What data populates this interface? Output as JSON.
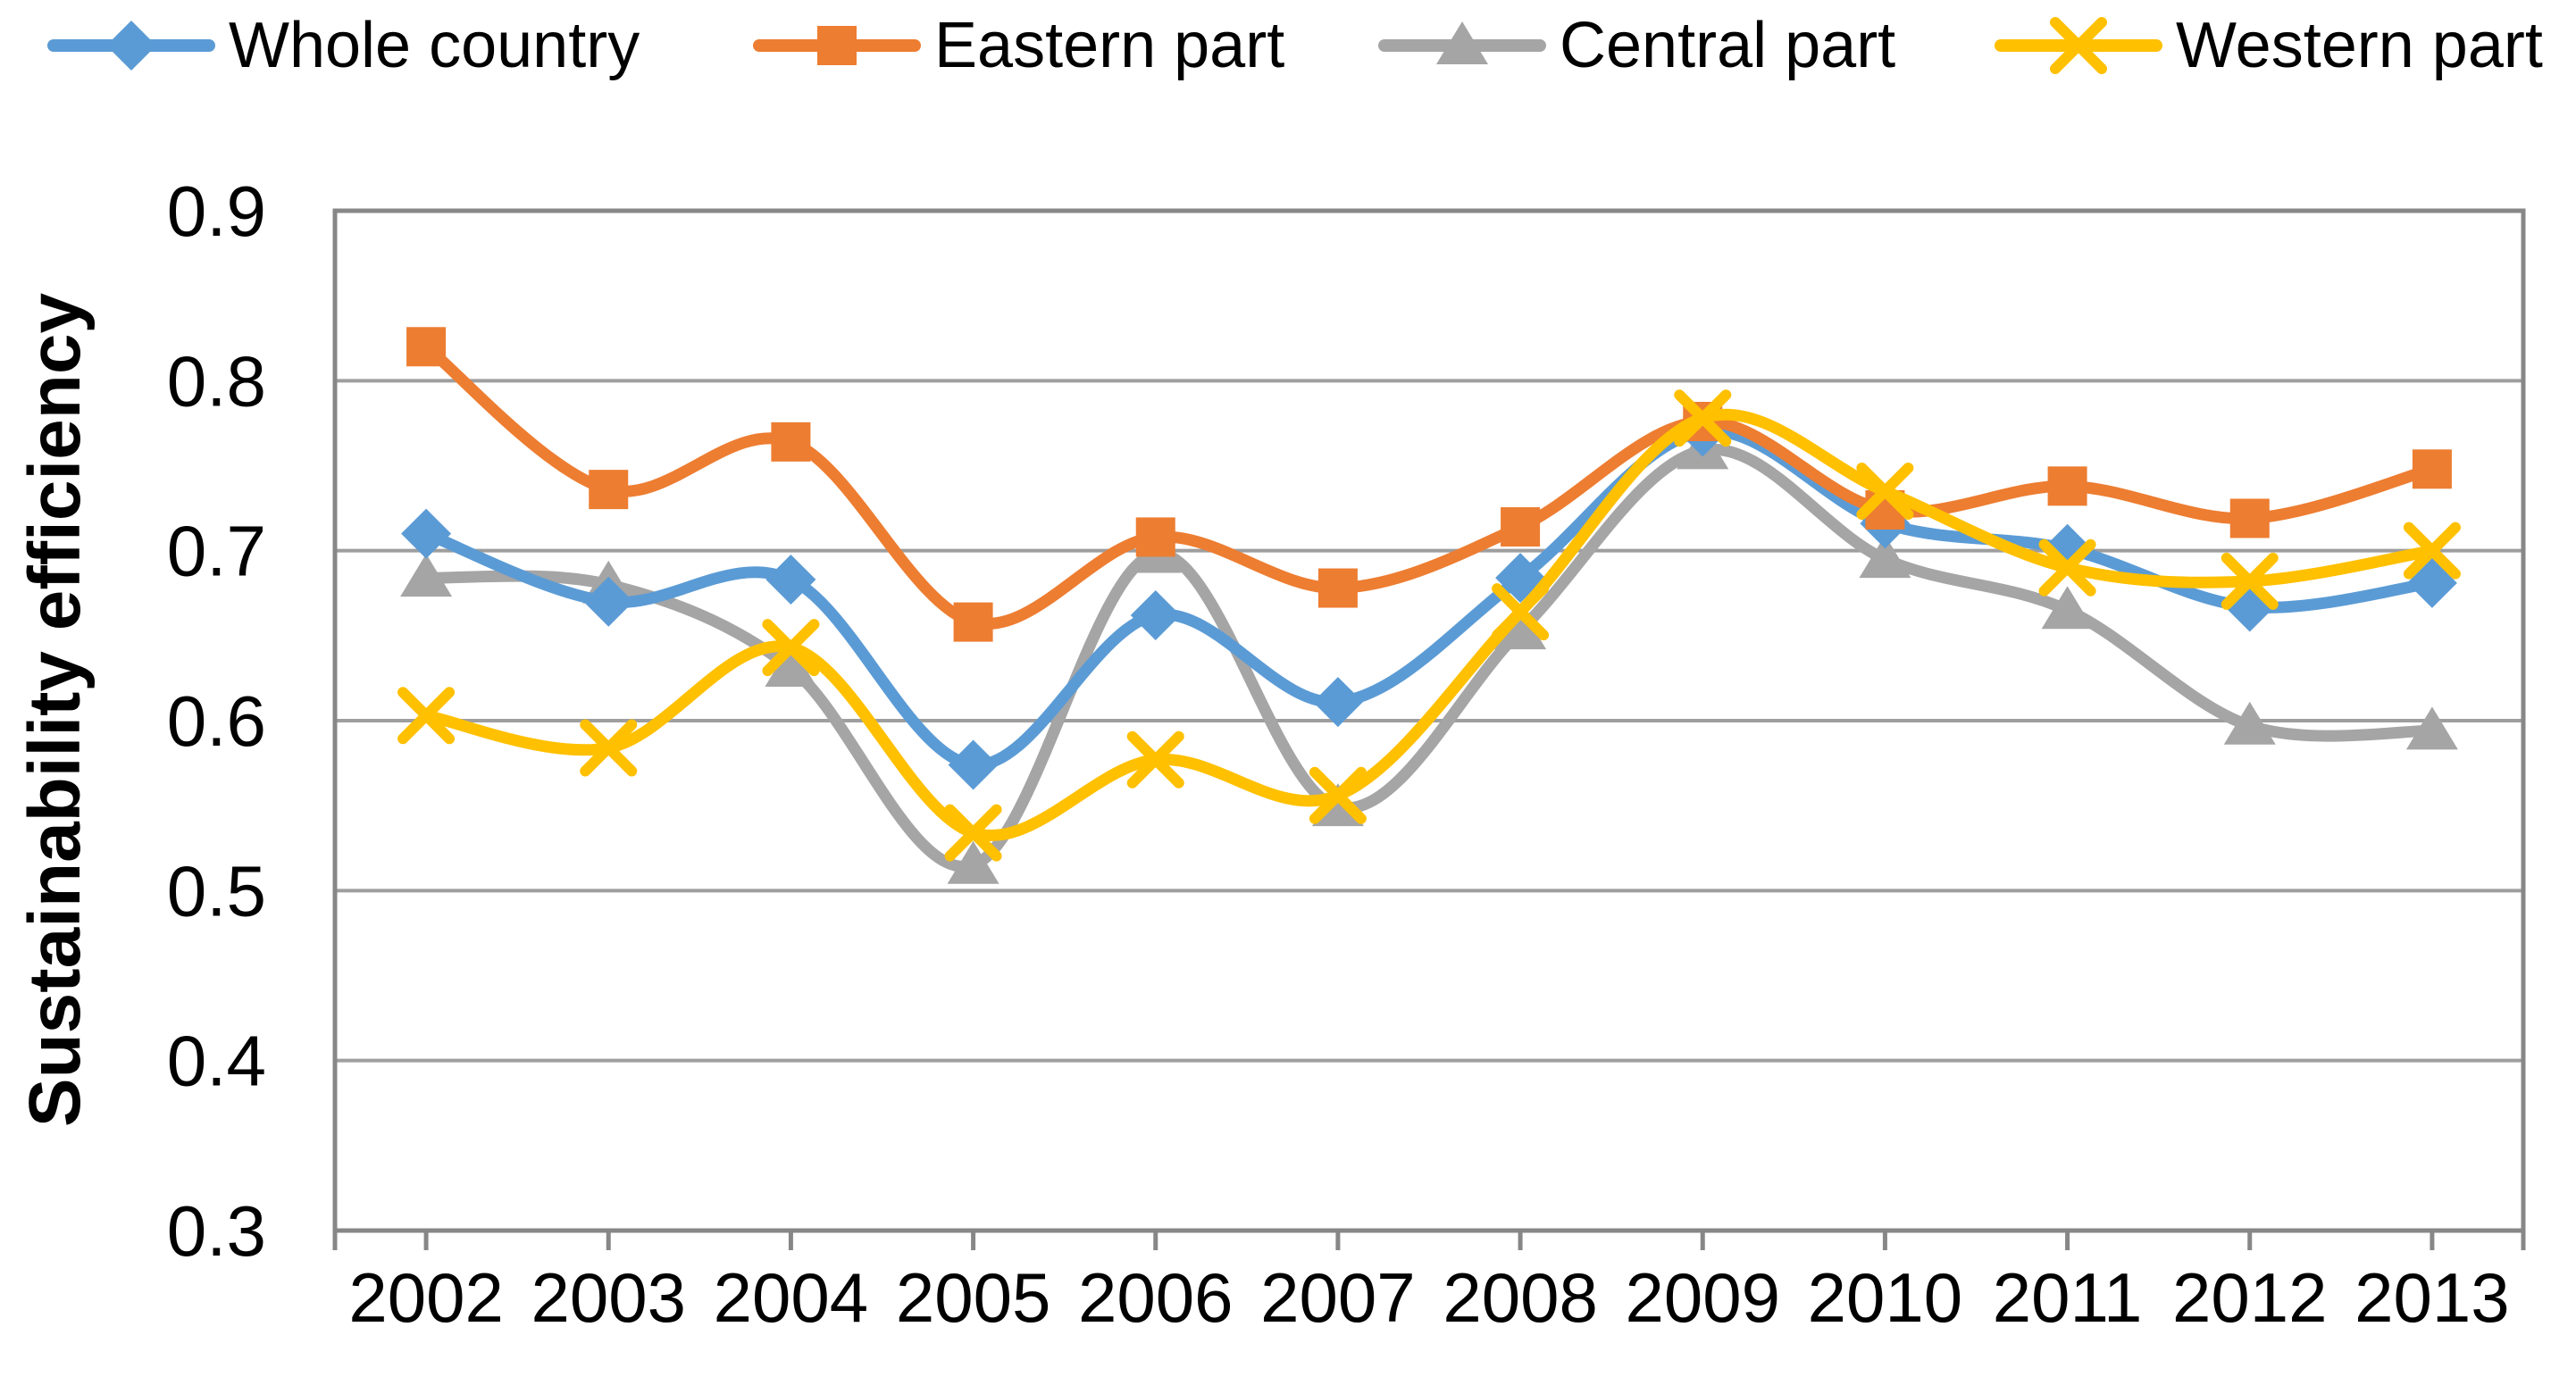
{
  "chart_data": {
    "type": "line",
    "title": "",
    "xlabel": "",
    "ylabel": "Sustainability efficiency",
    "x": [
      2002,
      2003,
      2004,
      2005,
      2006,
      2007,
      2008,
      2009,
      2010,
      2011,
      2012,
      2013
    ],
    "ylim": [
      0.3,
      0.9
    ],
    "yticks": [
      0.3,
      0.4,
      0.5,
      0.6,
      0.7,
      0.8,
      0.9
    ],
    "ytick_labels": [
      "0.3",
      "0.4",
      "0.5",
      "0.6",
      "0.7",
      "0.8",
      "0.9"
    ],
    "grid": "horizontal-gridlines-on",
    "legend_position": "top",
    "smooth_lines": true,
    "axis_color": "#878787",
    "gridline_color": "#9E9E9E",
    "text_color": "#000000",
    "series": [
      {
        "name": "Whole country",
        "marker": "diamond",
        "color": "#5B9BD5",
        "values": [
          0.71,
          0.67,
          0.683,
          0.574,
          0.662,
          0.611,
          0.684,
          0.77,
          0.716,
          0.701,
          0.667,
          0.681
        ]
      },
      {
        "name": "Eastern part",
        "marker": "square",
        "color": "#ED7D31",
        "values": [
          0.82,
          0.736,
          0.764,
          0.658,
          0.708,
          0.678,
          0.714,
          0.776,
          0.724,
          0.738,
          0.719,
          0.748
        ]
      },
      {
        "name": "Central part",
        "marker": "triangle",
        "color": "#A5A5A5",
        "values": [
          0.684,
          0.68,
          0.631,
          0.515,
          0.698,
          0.549,
          0.653,
          0.759,
          0.695,
          0.665,
          0.597,
          0.594
        ]
      },
      {
        "name": "Western part",
        "marker": "x",
        "color": "#FFC000",
        "values": [
          0.603,
          0.584,
          0.643,
          0.534,
          0.577,
          0.556,
          0.664,
          0.778,
          0.735,
          0.69,
          0.682,
          0.7
        ]
      }
    ]
  }
}
